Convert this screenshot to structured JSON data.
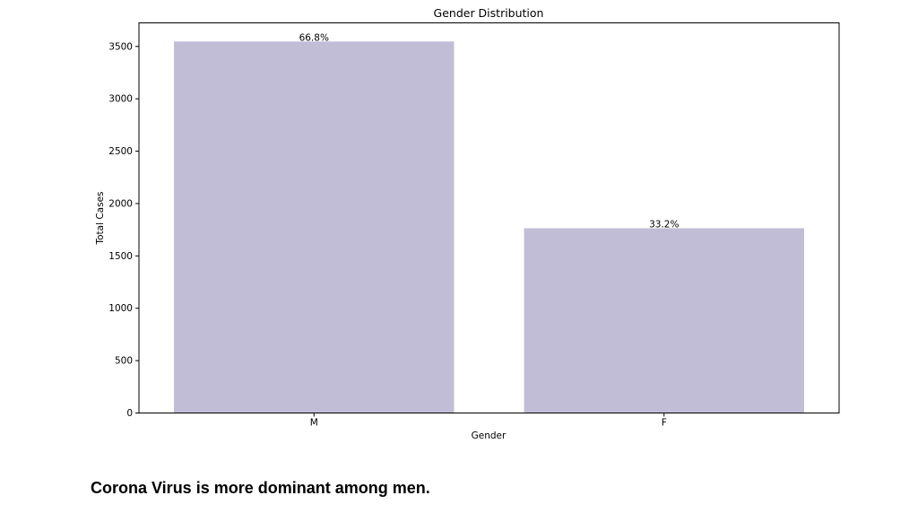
{
  "chart_data": {
    "type": "bar",
    "title": "Gender Distribution",
    "xlabel": "Gender",
    "ylabel": "Total Cases",
    "categories": [
      "M",
      "F"
    ],
    "values": [
      3547,
      1764
    ],
    "bar_labels": [
      "66.8%",
      "33.2%"
    ],
    "ylim": [
      0,
      3725
    ],
    "yticks": [
      0,
      500,
      1000,
      1500,
      2000,
      2500,
      3000,
      3500
    ],
    "grid": false,
    "bar_color": "#c1bdd6"
  },
  "caption": "Corona Virus is more dominant among men."
}
